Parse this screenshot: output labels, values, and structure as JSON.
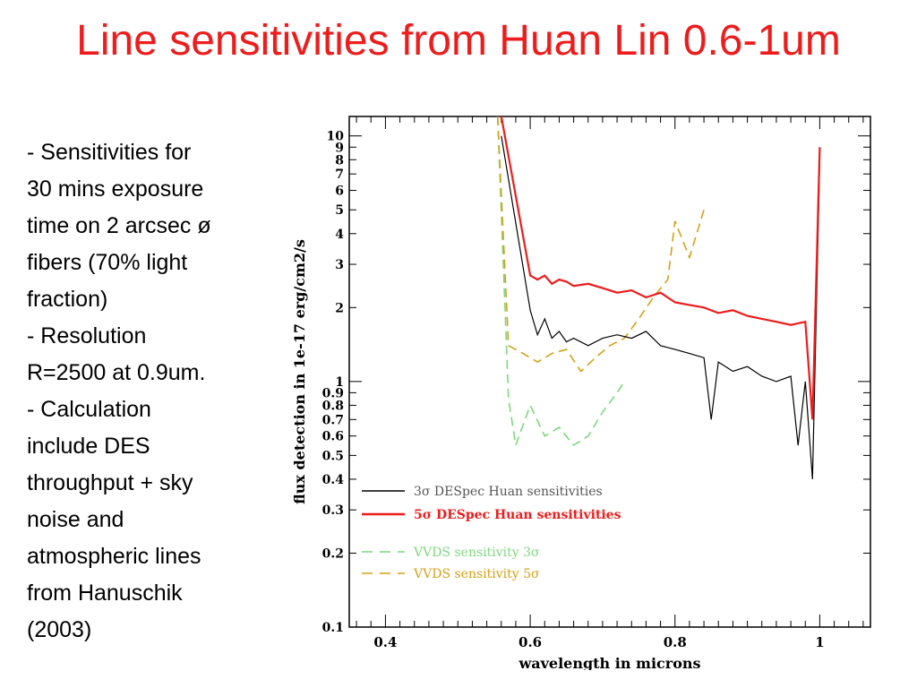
{
  "slide": {
    "title": "Line sensitivities from Huan Lin 0.6-1um",
    "bullets": [
      "- Sensitivities for",
      "30 mins exposure",
      "time on 2 arcsec ø",
      "fibers (70% light",
      "fraction)",
      "- Resolution",
      "R=2500 at 0.9um.",
      "- Calculation",
      "include DES",
      "throughput + sky",
      "noise and",
      "atmospheric lines",
      "from Hanuschik",
      "(2003)"
    ]
  },
  "chart_data": {
    "type": "line",
    "xlabel": "wavelength in microns",
    "ylabel": "flux detection in 1e-17 erg/cm2/s",
    "xlim": [
      0.35,
      1.07
    ],
    "ylim": [
      0.1,
      12
    ],
    "yscale": "log",
    "x_ticks": [
      0.4,
      0.6,
      0.8,
      1
    ],
    "x_tick_labels": [
      "0.4",
      "0.6",
      "0.8",
      "1"
    ],
    "y_ticks": [
      0.1,
      0.2,
      0.3,
      0.4,
      0.5,
      0.6,
      0.7,
      0.8,
      0.9,
      1,
      2,
      3,
      4,
      5,
      6,
      7,
      8,
      9,
      10
    ],
    "y_tick_labels": [
      "0.1",
      "0.2",
      "0.3",
      "0.4",
      "0.5",
      "0.6",
      "0.7",
      "0.8",
      "0.9",
      "1",
      "2",
      "3",
      "4",
      "5",
      "6",
      "7",
      "8",
      "9",
      "10"
    ],
    "legend": "bottom-left",
    "series": [
      {
        "name": "3σ DESpec Huan sensitivities",
        "color": "#000000",
        "style": "solid",
        "x": [
          0.56,
          0.6,
          0.61,
          0.62,
          0.63,
          0.64,
          0.65,
          0.66,
          0.68,
          0.7,
          0.72,
          0.74,
          0.76,
          0.78,
          0.8,
          0.82,
          0.84,
          0.85,
          0.86,
          0.88,
          0.9,
          0.92,
          0.94,
          0.96,
          0.97,
          0.98,
          0.99,
          1.0
        ],
        "values": [
          10,
          1.95,
          1.55,
          1.8,
          1.5,
          1.6,
          1.45,
          1.5,
          1.4,
          1.5,
          1.55,
          1.5,
          1.6,
          1.4,
          1.35,
          1.3,
          1.25,
          0.7,
          1.2,
          1.1,
          1.15,
          1.05,
          1.0,
          1.05,
          0.55,
          1.0,
          0.4,
          8
        ]
      },
      {
        "name": "5σ DESpec Huan sensitivities",
        "color": "#ee1c1c",
        "style": "solid",
        "x": [
          0.56,
          0.6,
          0.61,
          0.62,
          0.63,
          0.64,
          0.65,
          0.66,
          0.68,
          0.7,
          0.72,
          0.74,
          0.76,
          0.78,
          0.8,
          0.82,
          0.84,
          0.86,
          0.88,
          0.9,
          0.92,
          0.94,
          0.96,
          0.98,
          0.99,
          1.0
        ],
        "values": [
          12,
          2.7,
          2.6,
          2.7,
          2.5,
          2.6,
          2.55,
          2.45,
          2.5,
          2.4,
          2.3,
          2.35,
          2.2,
          2.3,
          2.1,
          2.05,
          2.0,
          1.9,
          1.95,
          1.85,
          1.8,
          1.75,
          1.7,
          1.75,
          0.7,
          9
        ]
      },
      {
        "name": "VVDS sensitivity 3σ",
        "color": "#7ed87e",
        "style": "dashed",
        "x": [
          0.555,
          0.57,
          0.58,
          0.6,
          0.62,
          0.64,
          0.66,
          0.68,
          0.7,
          0.72,
          0.73
        ],
        "values": [
          12,
          0.85,
          0.55,
          0.8,
          0.6,
          0.65,
          0.55,
          0.6,
          0.75,
          0.9,
          1.0
        ]
      },
      {
        "name": "VVDS sensitivity 5σ",
        "color": "#d4a017",
        "style": "dashed",
        "x": [
          0.555,
          0.57,
          0.59,
          0.61,
          0.63,
          0.65,
          0.67,
          0.69,
          0.71,
          0.73,
          0.75,
          0.77,
          0.79,
          0.8,
          0.82,
          0.84
        ],
        "values": [
          12,
          1.4,
          1.3,
          1.2,
          1.3,
          1.35,
          1.1,
          1.25,
          1.4,
          1.5,
          1.8,
          2.2,
          2.6,
          4.5,
          3.2,
          5.0
        ]
      }
    ]
  }
}
